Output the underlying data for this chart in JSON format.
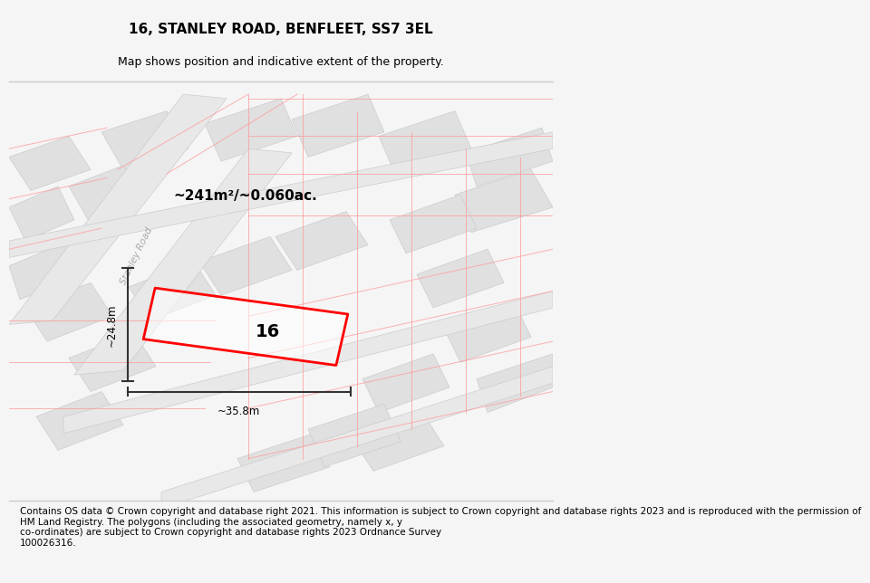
{
  "title": "16, STANLEY ROAD, BENFLEET, SS7 3EL",
  "subtitle": "Map shows position and indicative extent of the property.",
  "area_text": "~241m²/~0.060ac.",
  "width_label": "~35.8m",
  "height_label": "~24.8m",
  "number_label": "16",
  "footer": "Contains OS data © Crown copyright and database right 2021. This information is subject to Crown copyright and database rights 2023 and is reproduced with the permission of\nHM Land Registry. The polygons (including the associated geometry, namely x, y\nco-ordinates) are subject to Crown copyright and database rights 2023 Ordnance Survey\n100026316.",
  "bg_color": "#f5f5f5",
  "map_bg": "#f2f2f2",
  "plot_outline_color": "#ff0000",
  "dim_line_color": "#333333",
  "title_fontsize": 11,
  "subtitle_fontsize": 9,
  "footer_fontsize": 7.5,
  "stanley_road_label": "Stanley Road",
  "road_label_rotation": 64
}
